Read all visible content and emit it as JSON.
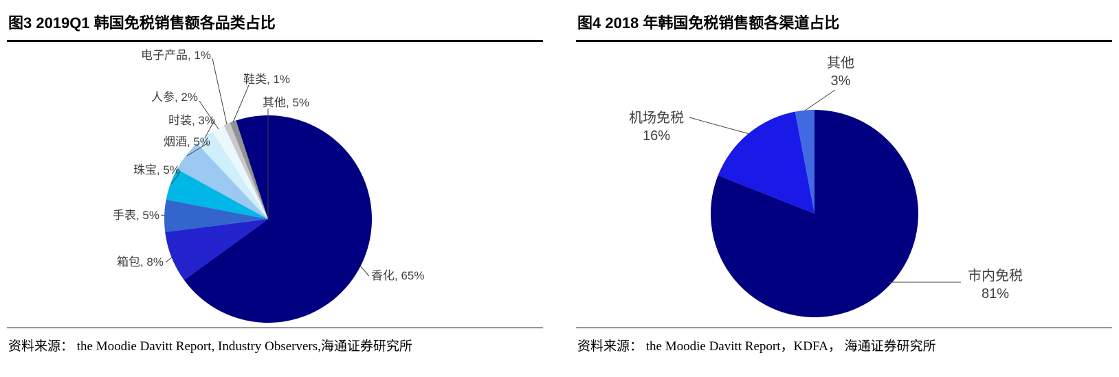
{
  "figures": [
    {
      "title": "图3  2019Q1 韩国免税销售额各品类占比",
      "source": "资料来源：  the Moodie Davitt Report, Industry Observers,海通证券研究所"
    },
    {
      "title": "图4  2018 年韩国免税销售额各渠道占比",
      "source": "资料来源：  the Moodie Davitt Report，KDFA，  海通证券研究所"
    }
  ],
  "chart_data": [
    {
      "type": "pie",
      "figure_number": "图3",
      "title": "2019Q1 韩国免税销售额各品类占比",
      "direction": "clockwise",
      "start_angle_deg": 0,
      "label_format": "{label}, {value}%",
      "slices": [
        {
          "label": "香化",
          "value": 65,
          "color": "#000080"
        },
        {
          "label": "箱包",
          "value": 8,
          "color": "#2323CE"
        },
        {
          "label": "手表",
          "value": 5,
          "color": "#3366CC"
        },
        {
          "label": "珠宝",
          "value": 5,
          "color": "#00B7E8"
        },
        {
          "label": "烟酒",
          "value": 5,
          "color": "#9CC9F2"
        },
        {
          "label": "时装",
          "value": 3,
          "color": "#CFEFFB"
        },
        {
          "label": "人参",
          "value": 2,
          "color": "#EAF7FD"
        },
        {
          "label": "电子产品",
          "value": 1,
          "color": "#C9C9C9"
        },
        {
          "label": "鞋类",
          "value": 1,
          "color": "#939393"
        },
        {
          "label": "其他",
          "value": 5,
          "color": "#000080"
        }
      ]
    },
    {
      "type": "pie",
      "figure_number": "图4",
      "title": "2018 年韩国免税销售额各渠道占比",
      "direction": "clockwise",
      "start_angle_deg": 0,
      "label_format": "{label}\n{value}%",
      "slices": [
        {
          "label": "市内免税",
          "value": 81,
          "color": "#000080"
        },
        {
          "label": "机场免税",
          "value": 16,
          "color": "#1A1AE8"
        },
        {
          "label": "其他",
          "value": 3,
          "color": "#4169E1"
        }
      ]
    }
  ]
}
